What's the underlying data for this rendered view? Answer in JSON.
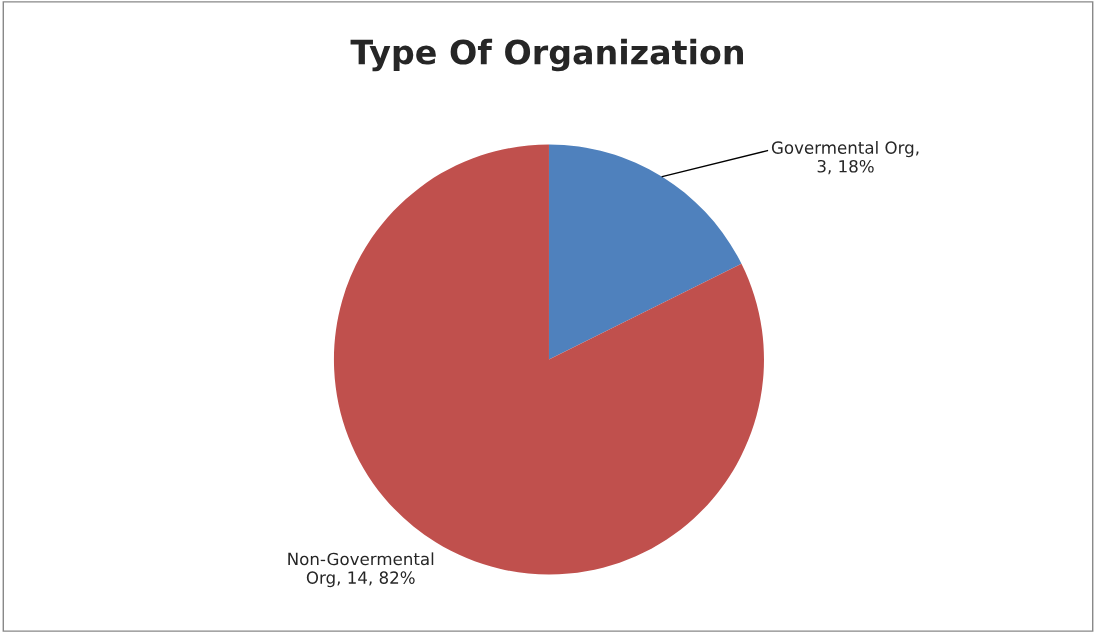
{
  "chart_data": {
    "type": "pie",
    "title": "Type Of Organization",
    "categories": [
      "Govermental Org",
      "Non-Govermental Org"
    ],
    "values": [
      3,
      14
    ],
    "value_labels": [
      ", 3, 18%",
      ", 14, 82%"
    ],
    "colors": [
      "#4f81bd",
      "#c0504d"
    ]
  }
}
